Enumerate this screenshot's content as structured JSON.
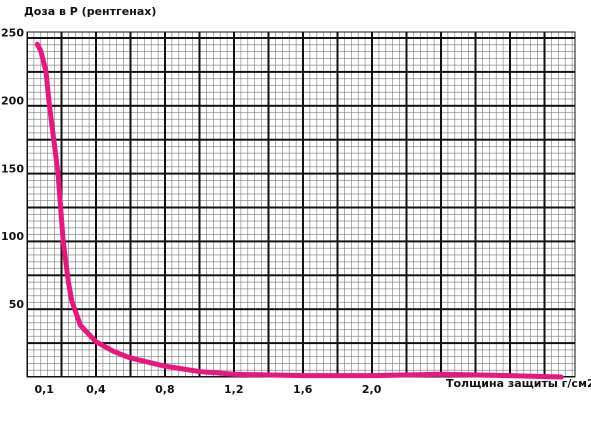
{
  "chart_data": {
    "type": "line",
    "title": "Доза в Р (рентгенах)",
    "x_label": "Толщина защиты г/см2",
    "x": [
      0.06,
      0.08,
      0.11,
      0.13,
      0.16,
      0.18,
      0.21,
      0.24,
      0.26,
      0.31,
      0.4,
      0.5,
      0.6,
      0.8,
      1.0,
      1.2,
      1.6,
      2.0,
      2.4,
      2.8,
      3.1
    ],
    "series": [
      {
        "name": "Доза",
        "color": "#e8177f",
        "values": [
          245,
          240,
          225,
          200,
          170,
          150,
          100,
          70,
          56,
          38,
          26,
          19,
          14,
          8,
          4,
          2,
          1,
          1,
          2,
          1,
          0
        ]
      }
    ],
    "xlim": [
      0,
      3.18
    ],
    "ylim": [
      0,
      254
    ],
    "xticks": [
      {
        "value": 0.1,
        "label": "0,1"
      },
      {
        "value": 0.4,
        "label": "0,4"
      },
      {
        "value": 0.8,
        "label": "0,8"
      },
      {
        "value": 1.2,
        "label": "1,2"
      },
      {
        "value": 1.6,
        "label": "1,6"
      },
      {
        "value": 2.0,
        "label": "2,0"
      }
    ],
    "yticks": [
      50,
      100,
      150,
      200,
      250
    ],
    "grid": true
  }
}
